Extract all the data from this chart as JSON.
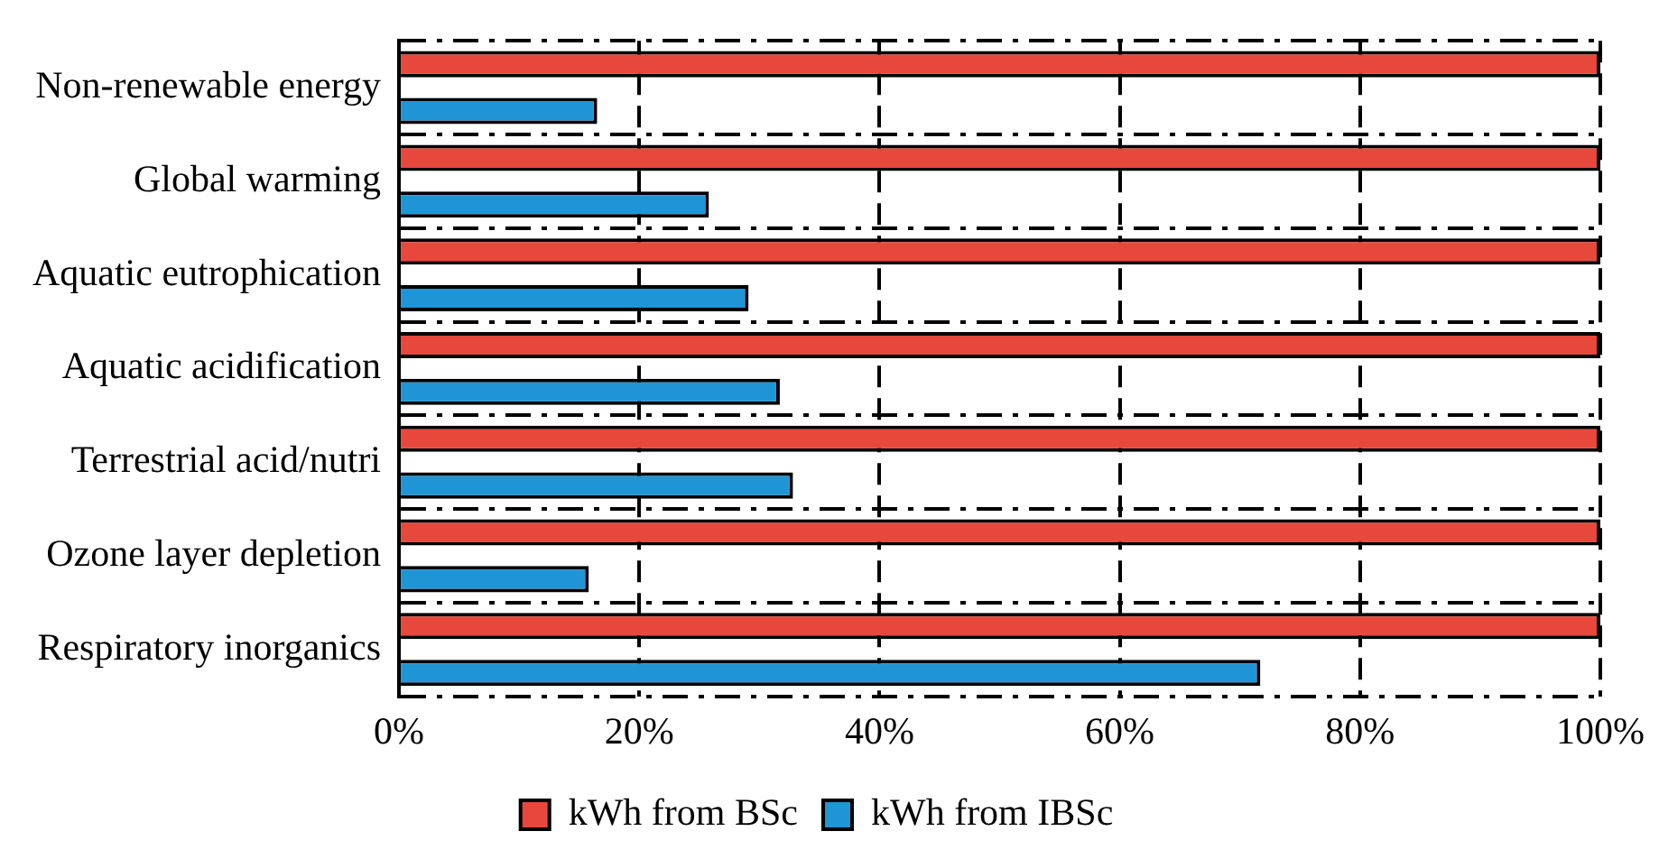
{
  "chart_data": {
    "type": "bar",
    "orientation": "horizontal",
    "categories": [
      "Non-renewable energy",
      "Global warming",
      "Aquatic eutrophication",
      "Aquatic acidification",
      "Terrestrial acid/nutri",
      "Ozone layer depletion",
      "Respiratory inorganics"
    ],
    "series": [
      {
        "name": "kWh from BSc",
        "color": "#e8473b",
        "values": [
          100,
          100,
          100,
          100,
          100,
          100,
          100
        ]
      },
      {
        "name": "kWh from IBSc",
        "color": "#1f95d6",
        "values": [
          16.5,
          25.8,
          29.1,
          31.7,
          32.8,
          15.8,
          71.7
        ]
      }
    ],
    "xlim": [
      0,
      100
    ],
    "xticks": [
      {
        "value": 0,
        "label": "0%"
      },
      {
        "value": 20,
        "label": "20%"
      },
      {
        "value": 40,
        "label": "40%"
      },
      {
        "value": 60,
        "label": "60%"
      },
      {
        "value": 80,
        "label": "80%"
      },
      {
        "value": 100,
        "label": "100%"
      }
    ],
    "grid": true,
    "legend": "bottom"
  }
}
